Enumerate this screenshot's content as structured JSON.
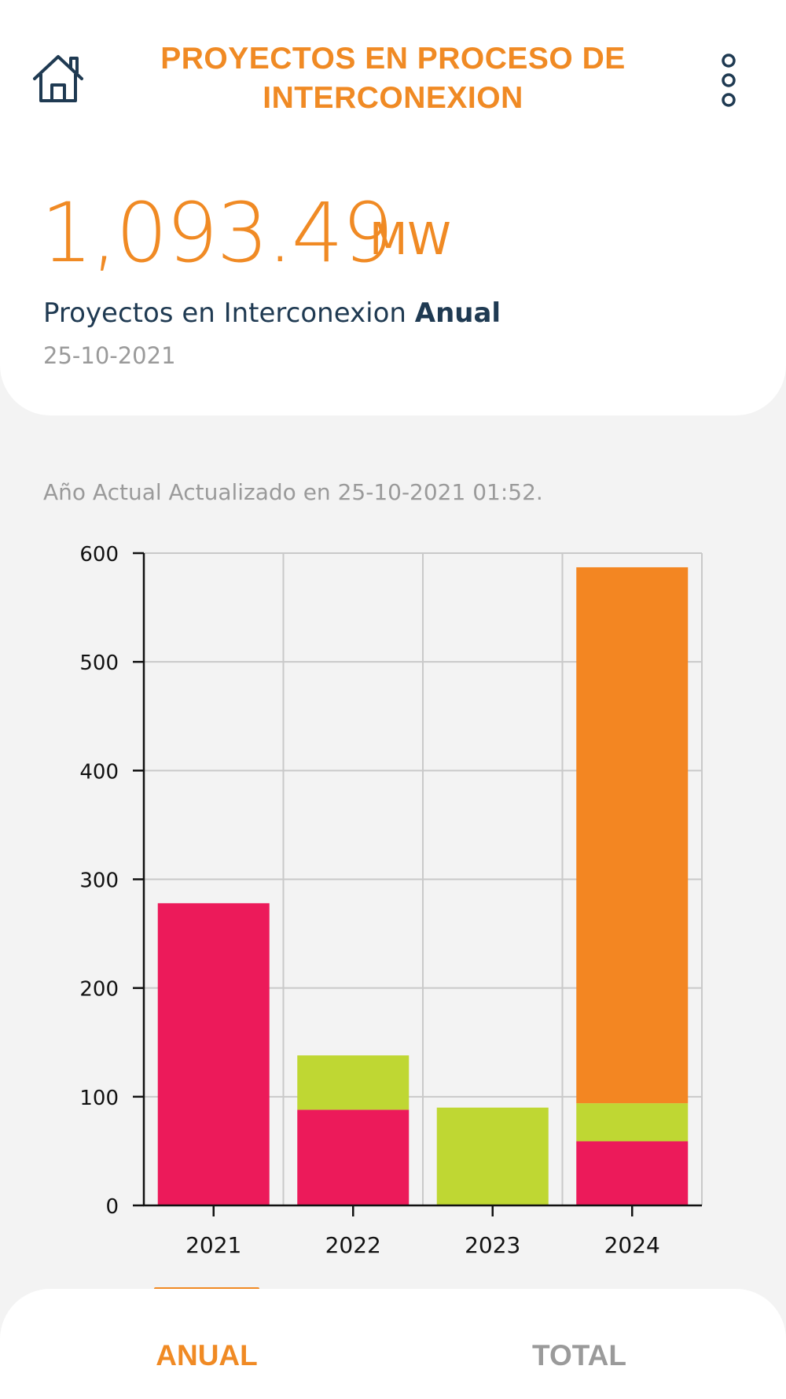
{
  "header": {
    "title_line1": "PROYECTOS EN PROCESO DE",
    "title_line2": "INTERCONEXION",
    "home_icon": "home-icon",
    "menu_icon": "more-vertical-icon"
  },
  "summary": {
    "value": "1,093.49",
    "unit": "MW",
    "label": "Proyectos en Interconexion",
    "label_bold": "Anual",
    "date": "25-10-2021"
  },
  "updated_text": "Año Actual Actualizado en 25-10-2021 01:52.",
  "chart_data": {
    "type": "bar",
    "stacked": true,
    "categories": [
      "2021",
      "2022",
      "2023",
      "2024"
    ],
    "series": [
      {
        "color": "#ec1a5a",
        "values": [
          278,
          88,
          0,
          59
        ]
      },
      {
        "color": "#bfd733",
        "values": [
          0,
          50,
          90,
          35
        ]
      },
      {
        "color": "#f38622",
        "values": [
          0,
          0,
          0,
          493
        ]
      }
    ],
    "yticks": [
      "0",
      "100",
      "200",
      "300",
      "400",
      "500",
      "600"
    ],
    "ylim": [
      0,
      600
    ],
    "grid": true,
    "legend": "none"
  },
  "tabs": {
    "anual": "ANUAL",
    "total": "TOTAL"
  },
  "colors": {
    "accent": "#f08a24",
    "dark_text": "#1f3a52",
    "muted": "#9a9a9a"
  }
}
